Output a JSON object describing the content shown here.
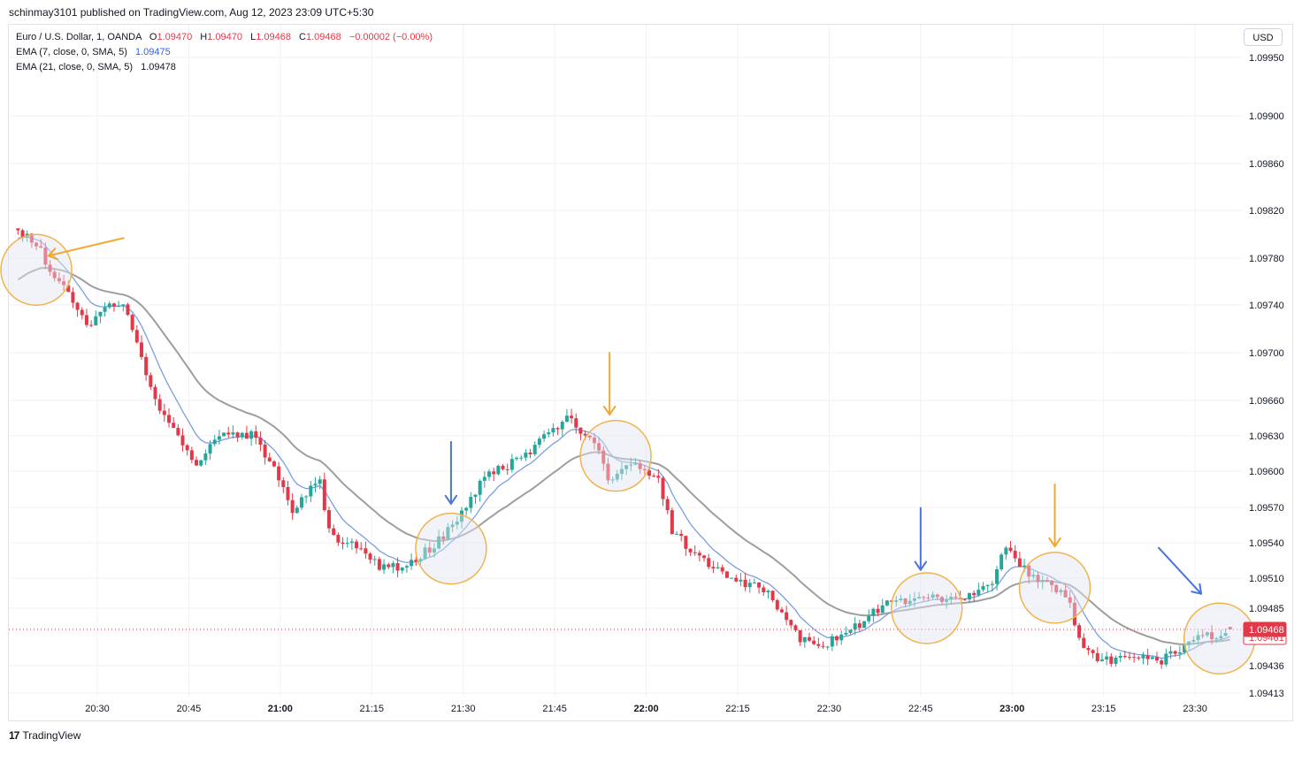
{
  "publisher": "schinmay3101 published on TradingView.com, Aug 12, 2023 23:09 UTC+5:30",
  "legend": {
    "symbol": "Euro / U.S. Dollar, 1, OANDA",
    "ohlc": {
      "o_label": "O",
      "o": "1.09470",
      "h_label": "H",
      "h": "1.09470",
      "l_label": "L",
      "l": "1.09468",
      "c_label": "C",
      "c": "1.09468",
      "change": "−0.00002 (−0.00%)"
    },
    "ema7": {
      "label": "EMA (7, close, 0, SMA, 5)",
      "value": "1.09475"
    },
    "ema21": {
      "label": "EMA (21, close, 0, SMA, 5)",
      "value": "1.09478"
    }
  },
  "currency_button": "USD",
  "brand": {
    "logo": "17",
    "name": "TradingView"
  },
  "colors": {
    "up": "#26a69a",
    "down": "#e03a4a",
    "ema7": "#7b9fe0",
    "ema21": "#9e9e9e",
    "circle": "#f0b44c",
    "arrow_orange": "#f0a830",
    "arrow_blue": "#4a74d8",
    "last_price_bg": "#e03a4a"
  },
  "chart_data": {
    "type": "candlestick",
    "symbol": "EURUSD",
    "interval": "1 minute",
    "y_ticks": [
      "1.09950",
      "1.09900",
      "1.09860",
      "1.09820",
      "1.09780",
      "1.09740",
      "1.09700",
      "1.09660",
      "1.09630",
      "1.09600",
      "1.09570",
      "1.09540",
      "1.09510",
      "1.09485",
      "1.09436",
      "1.09413"
    ],
    "x_ticks": [
      {
        "label": "20:30",
        "bold": false
      },
      {
        "label": "20:45",
        "bold": false
      },
      {
        "label": "21:00",
        "bold": true
      },
      {
        "label": "21:15",
        "bold": false
      },
      {
        "label": "21:30",
        "bold": false
      },
      {
        "label": "21:45",
        "bold": false
      },
      {
        "label": "22:00",
        "bold": true
      },
      {
        "label": "22:15",
        "bold": false
      },
      {
        "label": "22:30",
        "bold": false
      },
      {
        "label": "22:45",
        "bold": false
      },
      {
        "label": "23:00",
        "bold": true
      },
      {
        "label": "23:15",
        "bold": false
      },
      {
        "label": "23:30",
        "bold": false
      }
    ],
    "last_price": "1.09468",
    "ema_price_label": "1.09461",
    "grid": true,
    "anchors": [
      [
        "20:17",
        1.09805
      ],
      [
        "20:21",
        1.0979
      ],
      [
        "20:24",
        1.09762
      ],
      [
        "20:27",
        1.09742
      ],
      [
        "20:29",
        1.09722
      ],
      [
        "20:33",
        1.09742
      ],
      [
        "20:35",
        1.0974
      ],
      [
        "20:37",
        1.09712
      ],
      [
        "20:39",
        1.0968
      ],
      [
        "20:41",
        1.09652
      ],
      [
        "20:44",
        1.0963
      ],
      [
        "20:47",
        1.09606
      ],
      [
        "20:50",
        1.09628
      ],
      [
        "20:53",
        1.09632
      ],
      [
        "20:56",
        1.0963
      ],
      [
        "20:59",
        1.0961
      ],
      [
        "21:03",
        1.09565
      ],
      [
        "21:07",
        1.09597
      ],
      [
        "21:09",
        1.09545
      ],
      [
        "21:12",
        1.0954
      ],
      [
        "21:17",
        1.0952
      ],
      [
        "21:21",
        1.09518
      ],
      [
        "21:24",
        1.0953
      ],
      [
        "21:28",
        1.09548
      ],
      [
        "21:31",
        1.0957
      ],
      [
        "21:35",
        1.096
      ],
      [
        "21:38",
        1.09605
      ],
      [
        "21:41",
        1.09612
      ],
      [
        "21:45",
        1.09635
      ],
      [
        "21:48",
        1.09645
      ],
      [
        "21:51",
        1.0963
      ],
      [
        "21:53",
        1.0962
      ],
      [
        "21:55",
        1.09588
      ],
      [
        "21:57",
        1.09605
      ],
      [
        "22:00",
        1.09603
      ],
      [
        "22:03",
        1.0959
      ],
      [
        "22:05",
        1.0955
      ],
      [
        "22:09",
        1.0953
      ],
      [
        "22:12",
        1.0952
      ],
      [
        "22:15",
        1.09508
      ],
      [
        "22:18",
        1.09505
      ],
      [
        "22:21",
        1.09495
      ],
      [
        "22:23",
        1.0948
      ],
      [
        "22:26",
        1.09458
      ],
      [
        "22:30",
        1.09455
      ],
      [
        "22:34",
        1.09465
      ],
      [
        "22:38",
        1.09482
      ],
      [
        "22:41",
        1.0949
      ],
      [
        "22:46",
        1.09492
      ],
      [
        "22:50",
        1.09494
      ],
      [
        "22:55",
        1.09496
      ],
      [
        "22:58",
        1.0951
      ],
      [
        "22:59",
        1.0953
      ],
      [
        "23:00",
        1.09538
      ],
      [
        "23:02",
        1.0952
      ],
      [
        "23:06",
        1.09505
      ],
      [
        "23:09",
        1.09498
      ],
      [
        "23:10",
        1.09492
      ],
      [
        "23:11",
        1.0947
      ],
      [
        "23:13",
        1.09448
      ],
      [
        "23:16",
        1.0944
      ],
      [
        "23:19",
        1.09442
      ],
      [
        "23:22",
        1.09445
      ],
      [
        "23:25",
        1.0944
      ],
      [
        "23:28",
        1.0945
      ],
      [
        "23:31",
        1.09462
      ],
      [
        "23:34",
        1.09462
      ],
      [
        "23:36",
        1.09468
      ]
    ],
    "annotations": [
      {
        "type": "circle",
        "time": "20:20",
        "price": 1.0977
      },
      {
        "type": "circle",
        "time": "21:28",
        "price": 1.09535
      },
      {
        "type": "circle",
        "time": "21:55",
        "price": 1.09613
      },
      {
        "type": "circle",
        "time": "22:46",
        "price": 1.09485
      },
      {
        "type": "circle",
        "time": "23:07",
        "price": 1.09502
      },
      {
        "type": "circle",
        "time": "23:34",
        "price": 1.0946
      },
      {
        "type": "arrow",
        "color": "orange",
        "direction": "left",
        "target_time": "20:22",
        "target_price": 1.09782
      },
      {
        "type": "arrow",
        "color": "blue",
        "direction": "down",
        "target_time": "21:28",
        "target_price": 1.09573
      },
      {
        "type": "arrow",
        "color": "orange",
        "direction": "down",
        "target_time": "21:54",
        "target_price": 1.09648
      },
      {
        "type": "arrow",
        "color": "blue",
        "direction": "down",
        "target_time": "22:45",
        "target_price": 1.09517
      },
      {
        "type": "arrow",
        "color": "orange",
        "direction": "down",
        "target_time": "23:07",
        "target_price": 1.09537
      },
      {
        "type": "arrow",
        "color": "blue",
        "direction": "down-right",
        "target_time": "23:31",
        "target_price": 1.09497
      }
    ]
  }
}
